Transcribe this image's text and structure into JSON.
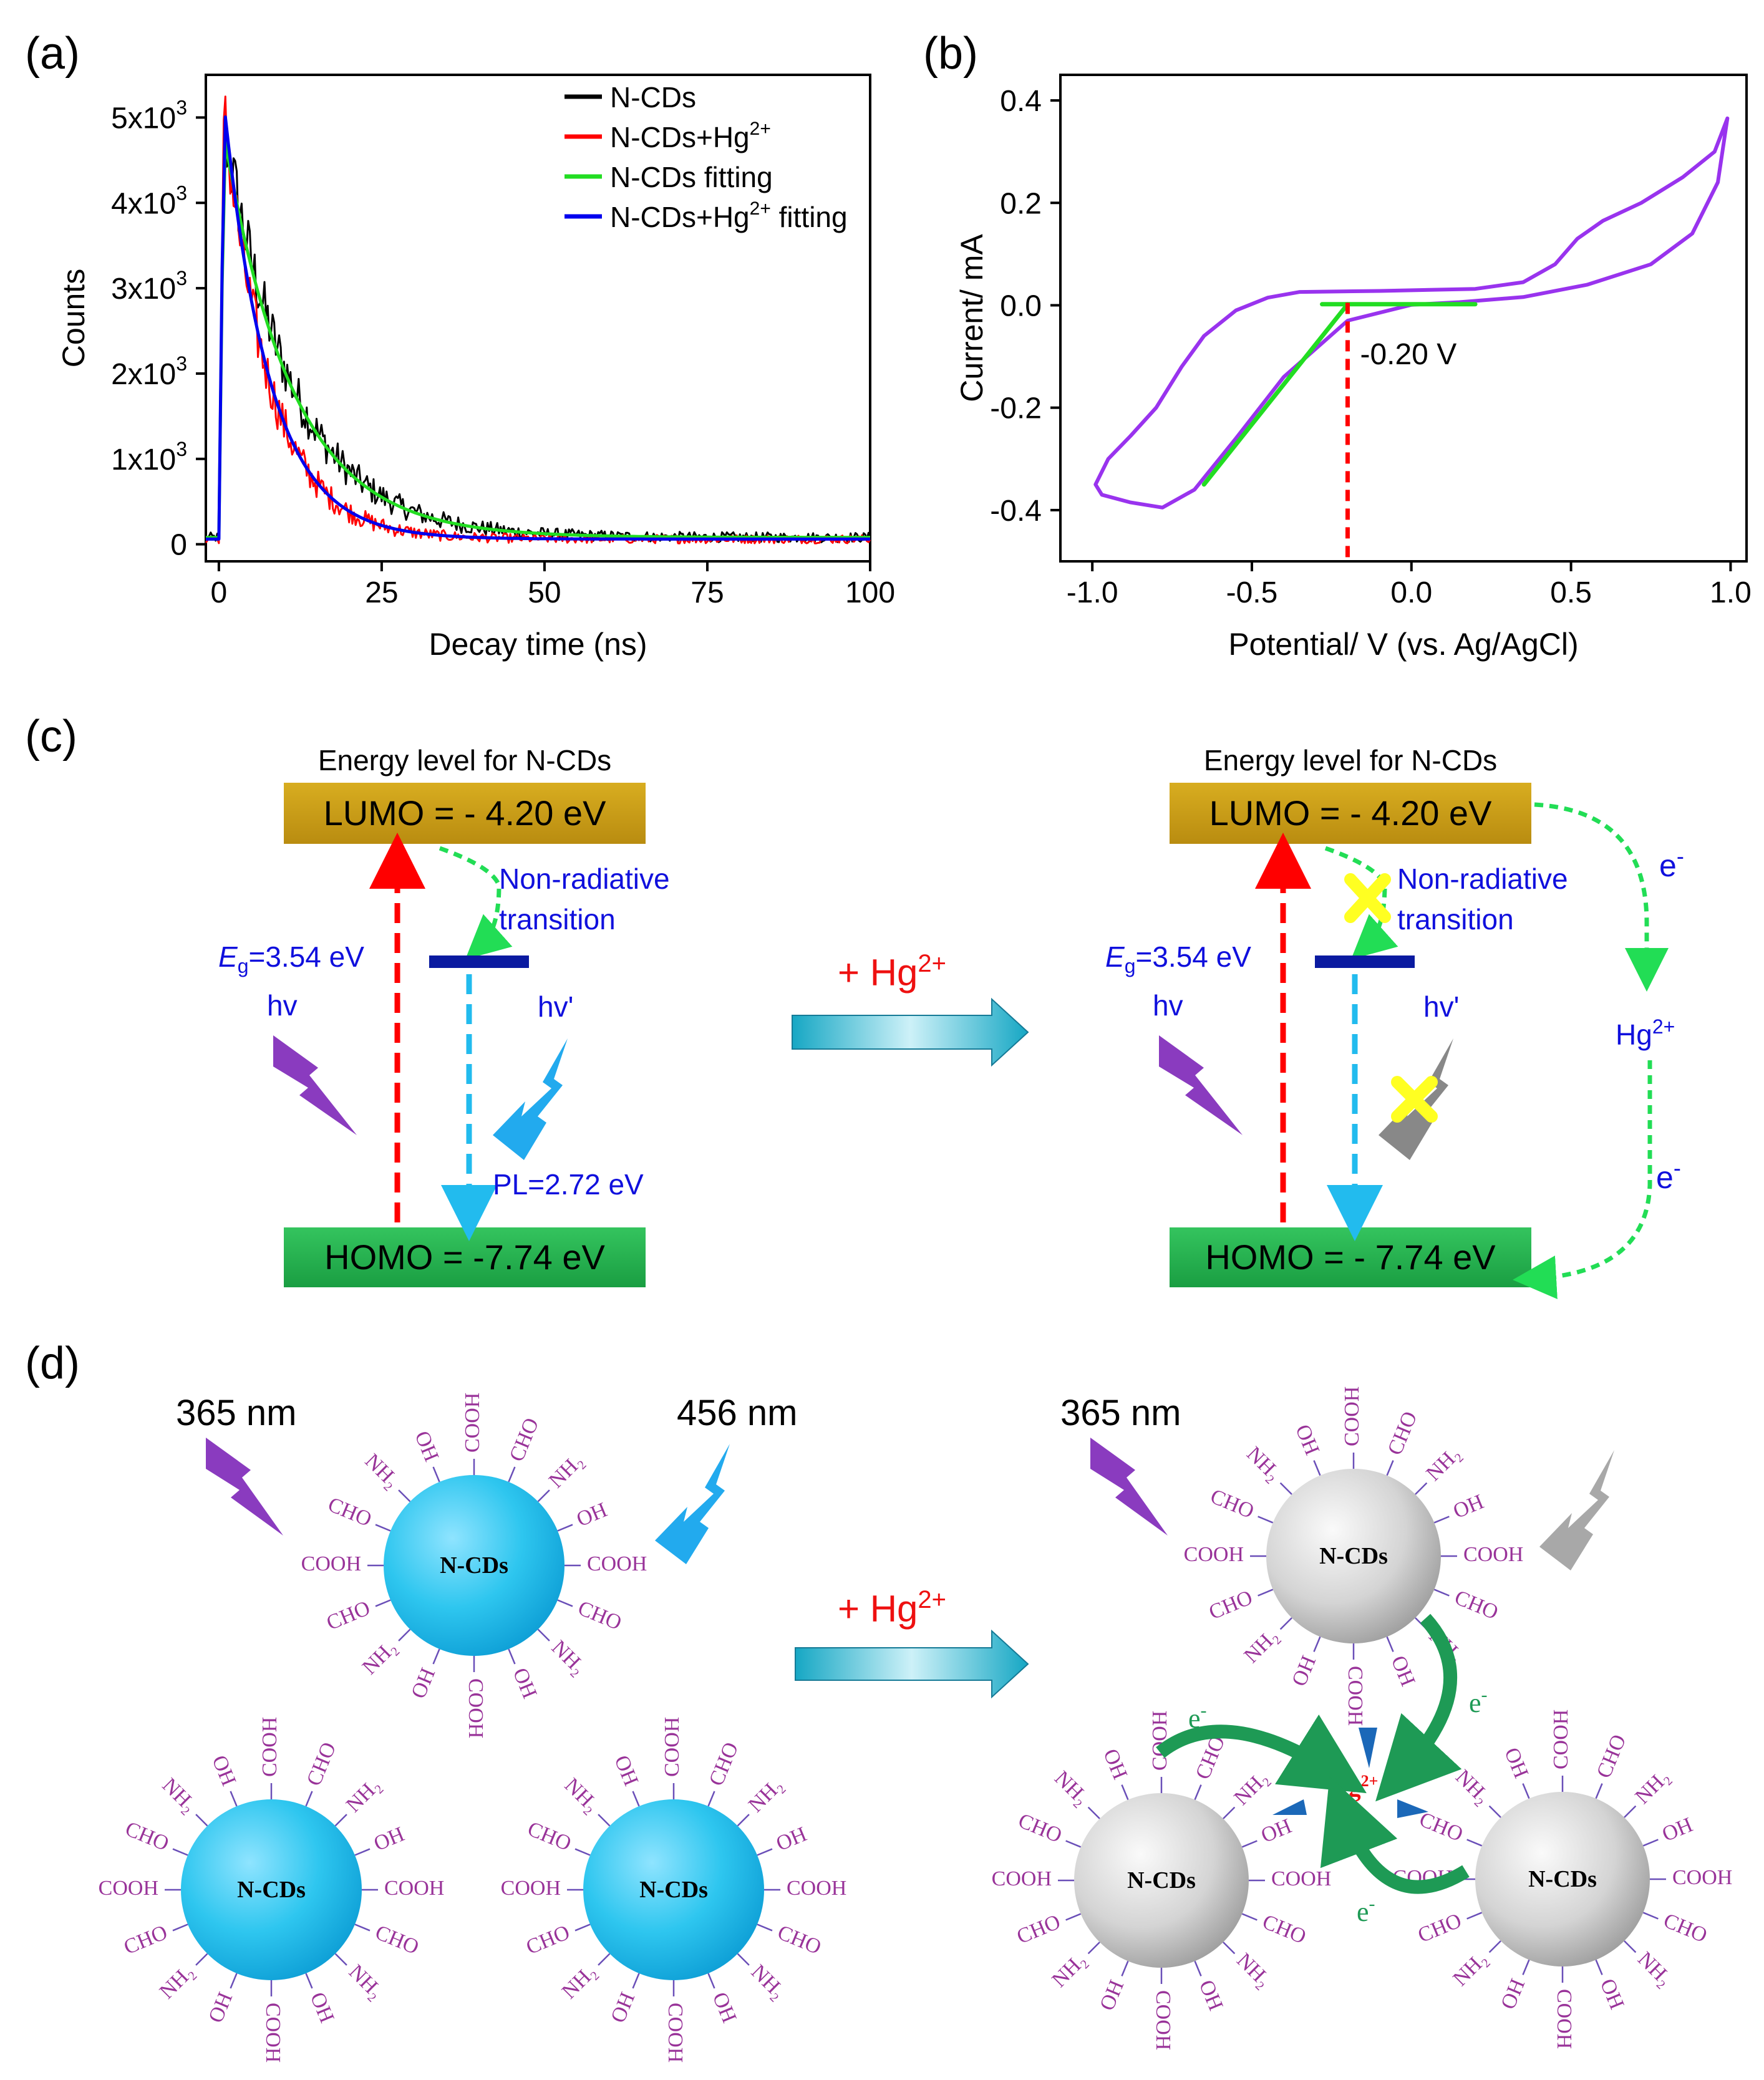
{
  "colors": {
    "black": "#000000",
    "red": "#ff0000",
    "green": "#22dd22",
    "blue": "#0000ee",
    "purple": "#9933ee",
    "lumo": "#c69a14",
    "homo": "#1fb04a",
    "dash_red": "#ff0000",
    "dash_cyan": "#22bbee",
    "dash_green": "#22dd55",
    "level_blue": "#0a1aa0",
    "bolt_purple": "#8a3bbf",
    "bolt_cyan": "#22aaee",
    "bolt_gray": "#888888",
    "cross_yellow": "#ffff22",
    "text_blue": "#1010dd",
    "plus_red": "#ee1111",
    "group_purple": "#993399",
    "sphere_blue": "#28c6ef",
    "sphere_gray": "#c9c9c9",
    "arrow_green": "#1e9a55",
    "tri_blue": "#1b68b8"
  },
  "panel_a": {
    "label": "(a)",
    "chart_data": {
      "type": "line",
      "xlabel": "Decay time (ns)",
      "ylabel": "Counts",
      "xlim": [
        -2,
        100
      ],
      "ylim": [
        -200,
        5500
      ],
      "xticks": [
        "0",
        "25",
        "50",
        "75",
        "100"
      ],
      "xtick_values": [
        0,
        25,
        50,
        75,
        100
      ],
      "yticks": [
        "0",
        "1x10",
        "2x10",
        "3x10",
        "4x10",
        "5x10"
      ],
      "ytick_values": [
        0,
        1000,
        2000,
        3000,
        4000,
        5000
      ],
      "ytick_exp": "3",
      "series": [
        {
          "name": "N-CDs",
          "color": "#000000",
          "noise": true,
          "peak": 4900,
          "tau": 10.5,
          "offset": 80
        },
        {
          "name": "N-CDs+Hg",
          "sup": "2+",
          "color": "#ff0000",
          "noise": true,
          "peak": 5050,
          "tau": 7.0,
          "offset": 60
        },
        {
          "name": "N-CDs fitting",
          "color": "#22dd22",
          "noise": false,
          "peak": 4800,
          "tau": 10.5,
          "offset": 80
        },
        {
          "name": "N-CDs+Hg",
          "sup": "2+",
          "suffix": " fitting",
          "color": "#0000ee",
          "noise": false,
          "peak": 5150,
          "tau": 7.0,
          "offset": 60
        }
      ]
    }
  },
  "panel_b": {
    "label": "(b)",
    "chart_data": {
      "type": "line",
      "xlabel": "Potential/ V (vs. Ag/AgCl)",
      "ylabel": "Current/ mA",
      "xlim": [
        -1.1,
        1.05
      ],
      "ylim": [
        -0.5,
        0.45
      ],
      "xticks": [
        "-1.0",
        "-0.5",
        "0.0",
        "0.5",
        "1.0"
      ],
      "xtick_values": [
        -1.0,
        -0.5,
        0.0,
        0.5,
        1.0
      ],
      "yticks": [
        "-0.4",
        "-0.2",
        "0.0",
        "0.2",
        "0.4"
      ],
      "ytick_values": [
        -0.4,
        -0.2,
        0.0,
        0.2,
        0.4
      ],
      "series": [
        {
          "name": "CV",
          "color": "#9933ee",
          "points": [
            [
              -0.35,
              0.026
            ],
            [
              -0.1,
              0.028
            ],
            [
              0.2,
              0.032
            ],
            [
              0.35,
              0.045
            ],
            [
              0.45,
              0.08
            ],
            [
              0.52,
              0.13
            ],
            [
              0.6,
              0.165
            ],
            [
              0.72,
              0.2
            ],
            [
              0.85,
              0.25
            ],
            [
              0.95,
              0.3
            ],
            [
              0.99,
              0.365
            ],
            [
              0.96,
              0.24
            ],
            [
              0.88,
              0.14
            ],
            [
              0.75,
              0.08
            ],
            [
              0.55,
              0.04
            ],
            [
              0.35,
              0.016
            ],
            [
              0.15,
              0.006
            ],
            [
              0.0,
              0.001
            ],
            [
              -0.2,
              -0.03
            ],
            [
              -0.4,
              -0.14
            ],
            [
              -0.55,
              -0.26
            ],
            [
              -0.68,
              -0.36
            ],
            [
              -0.78,
              -0.395
            ],
            [
              -0.88,
              -0.385
            ],
            [
              -0.97,
              -0.37
            ],
            [
              -0.99,
              -0.35
            ],
            [
              -0.95,
              -0.3
            ],
            [
              -0.88,
              -0.255
            ],
            [
              -0.8,
              -0.2
            ],
            [
              -0.72,
              -0.12
            ],
            [
              -0.65,
              -0.06
            ],
            [
              -0.55,
              -0.01
            ],
            [
              -0.45,
              0.015
            ],
            [
              -0.35,
              0.026
            ]
          ]
        },
        {
          "name": "tangent",
          "color": "#22dd22",
          "points": [
            [
              -0.65,
              -0.35
            ],
            [
              -0.2,
              0.002
            ]
          ]
        },
        {
          "name": "baseline",
          "color": "#22dd22",
          "points": [
            [
              -0.28,
              0.002
            ],
            [
              0.2,
              0.002
            ]
          ]
        }
      ],
      "onset_x": -0.2,
      "annotation": "-0.20 V"
    }
  },
  "panel_c": {
    "label": "(c)",
    "title": "Energy level for N-CDs",
    "lumo": "LUMO = - 4.20 eV",
    "homo_left": "HOMO = -7.74 eV",
    "homo_right": "HOMO = - 7.74 eV",
    "nonrad_1": "Non-radiative",
    "nonrad_2": "transition",
    "eg_sym": "E",
    "eg_sub": "g",
    "eg_val": "=3.54 eV",
    "hv": "hv",
    "hv_prime": "hv'",
    "pl": "PL=2.72 eV",
    "plus": "+ Hg",
    "plus_sup": "2+",
    "electron": "e",
    "electron_sup": "-",
    "hg_ion": "Hg",
    "hg_sup": "2+"
  },
  "panel_d": {
    "label": "(d)",
    "ex": "365 nm",
    "em": "456 nm",
    "core": "N-CDs",
    "plus": "+ Hg",
    "plus_sup": "2+",
    "electron": "e",
    "electron_sup": "-",
    "hg_ion": "Hg",
    "hg_sup": "2+",
    "groups": [
      "COOH",
      "CHO",
      "NH₂",
      "OH",
      "COOH",
      "CHO",
      "NH₂",
      "OH",
      "COOH",
      "OH",
      "NH₂",
      "CHO",
      "COOH",
      "CHO",
      "NH₂",
      "OH"
    ]
  }
}
